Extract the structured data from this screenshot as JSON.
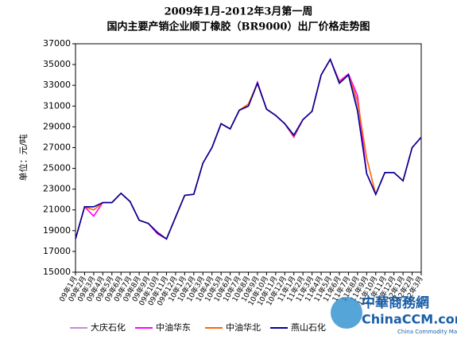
{
  "chart_data": {
    "type": "line",
    "title": "2009年1月-2012年3月第一周",
    "subtitle": "国内主要产销企业顺丁橡胶（BR9000）出厂价格走势图",
    "y_label": "单位：元/吨",
    "categories": [
      "09年1月",
      "09年2月",
      "09年3月",
      "09年4月",
      "09年5月",
      "09年6月",
      "09年7月",
      "09年8月",
      "09年9月",
      "09年10月",
      "09年11月",
      "09年12月",
      "10年1月",
      "10年2月",
      "10年3月",
      "10年4月",
      "10年5月",
      "10年6月",
      "10年7月",
      "10年8月",
      "10年9月",
      "10年10月",
      "10年11月",
      "10年12月",
      "11年1月",
      "11年2月",
      "11年3月",
      "11年4月",
      "11年5月",
      "11年6月",
      "11年7月",
      "11年8月",
      "11年9月",
      "11年10月",
      "11年11月",
      "11年12月",
      "12年1月",
      "12年2月",
      "12年3月"
    ],
    "series": [
      {
        "name": "大庆石化",
        "color": "#cc88dd",
        "values": [
          18200,
          21300,
          21300,
          21700,
          21700,
          22600,
          21800,
          20000,
          19700,
          18900,
          18200,
          20300,
          22400,
          22500,
          25500,
          27000,
          29300,
          28800,
          30600,
          31000,
          33200,
          30700,
          30100,
          29300,
          28200,
          29700,
          30500,
          34000,
          35500,
          33200,
          34000,
          31000,
          24500,
          22500,
          24600,
          24600,
          23800,
          27000,
          28000
        ]
      },
      {
        "name": "中油华东",
        "color": "#ff00ff",
        "values": [
          18200,
          21300,
          20400,
          21700,
          21700,
          22600,
          21800,
          20000,
          19700,
          18700,
          18200,
          20300,
          22400,
          22500,
          25500,
          27000,
          29300,
          28800,
          30600,
          31000,
          33300,
          30700,
          30100,
          29300,
          28000,
          29700,
          30500,
          34000,
          35500,
          33400,
          34100,
          32000,
          24500,
          22500,
          24600,
          24600,
          23800,
          27000,
          28000
        ]
      },
      {
        "name": "中油华北",
        "color": "#ff6600",
        "values": [
          18200,
          21300,
          21000,
          21700,
          21700,
          22600,
          21800,
          20000,
          19700,
          18800,
          18200,
          20300,
          22400,
          22500,
          25500,
          27000,
          29300,
          28800,
          30600,
          31200,
          33200,
          30700,
          30100,
          29300,
          28100,
          29700,
          30500,
          34000,
          35500,
          33300,
          34000,
          31500,
          26000,
          22500,
          24600,
          24600,
          23800,
          27000,
          28000
        ]
      },
      {
        "name": "燕山石化",
        "color": "#000099",
        "values": [
          18200,
          21300,
          21300,
          21700,
          21700,
          22600,
          21800,
          20000,
          19700,
          18800,
          18200,
          20300,
          22400,
          22500,
          25500,
          27000,
          29300,
          28800,
          30600,
          31000,
          33200,
          30700,
          30100,
          29300,
          28200,
          29700,
          30500,
          34000,
          35500,
          33200,
          34000,
          30500,
          24500,
          22500,
          24600,
          24600,
          23800,
          27000,
          28000
        ]
      }
    ],
    "ylim": [
      15000,
      37000
    ],
    "yticks": [
      15000,
      17000,
      19000,
      21000,
      23000,
      25000,
      27000,
      29000,
      31000,
      33000,
      35000,
      37000
    ],
    "grid": false
  },
  "watermark": {
    "name": "中華商務網",
    "site": "ChinaCCM.com",
    "tagline": "China Commodity Marketplace"
  }
}
